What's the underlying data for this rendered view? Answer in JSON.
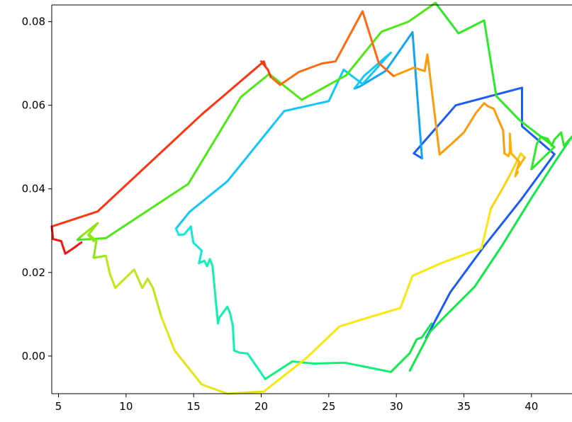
{
  "chart_data": {
    "type": "line",
    "title": "",
    "xlabel": "",
    "ylabel": "",
    "xlim": [
      4.5,
      43
    ],
    "ylim": [
      -0.009,
      0.084
    ],
    "grid": false,
    "legend": "none",
    "x_ticks": [
      5,
      10,
      15,
      20,
      25,
      30,
      35,
      40
    ],
    "x_tick_labels": [
      "5",
      "10",
      "15",
      "20",
      "25",
      "30",
      "35",
      "40"
    ],
    "y_ticks": [
      0.0,
      0.02,
      0.04,
      0.06,
      0.08
    ],
    "y_tick_labels": [
      "0.00",
      "0.02",
      "0.04",
      "0.06",
      "0.08"
    ],
    "color_scale": "jet (trajectory progresses from blue to red)",
    "series": [
      {
        "color": "#1a5cf5",
        "x": [
          32.2,
          34.0,
          36.5,
          39.2,
          41.7
        ],
        "y": [
          0.0043,
          0.0153,
          0.0263,
          0.0373,
          0.0483
        ]
      },
      {
        "color": "#1a5cf5",
        "x": [
          41.7,
          39.3,
          39.3,
          34.4,
          31.3,
          31.9
        ],
        "y": [
          0.0483,
          0.055,
          0.0642,
          0.06,
          0.0485,
          0.0473
        ]
      },
      {
        "color": "#11a6f5",
        "x": [
          31.9,
          31.2,
          29.2,
          27.3,
          26.9
        ],
        "y": [
          0.0473,
          0.0775,
          0.0682,
          0.0645,
          0.064
        ]
      },
      {
        "color": "#14c8f5",
        "x": [
          26.9,
          27.6,
          29.6,
          27.5,
          26.1,
          25.0,
          21.7,
          17.5,
          14.7,
          13.7
        ],
        "y": [
          0.064,
          0.067,
          0.0726,
          0.0651,
          0.0685,
          0.061,
          0.0586,
          0.0418,
          0.0345,
          0.0305
        ]
      },
      {
        "color": "#12e8da",
        "x": [
          13.7,
          13.9,
          14.3,
          14.8,
          14.9,
          15.0,
          15.2,
          15.6,
          15.4
        ],
        "y": [
          0.0305,
          0.029,
          0.0291,
          0.031,
          0.0285,
          0.027,
          0.0265,
          0.0252,
          0.0222
        ]
      },
      {
        "color": "#10f0b0",
        "x": [
          15.4,
          15.8,
          16.0,
          16.2,
          16.4,
          16.8,
          16.9,
          17.5,
          17.7,
          17.9,
          18.0,
          18.4,
          19.0,
          20.3
        ],
        "y": [
          0.0222,
          0.0228,
          0.0215,
          0.0232,
          0.0215,
          0.0078,
          0.0092,
          0.0118,
          0.0102,
          0.0072,
          0.0013,
          0.0008,
          0.0006,
          -0.0055
        ]
      },
      {
        "color": "#10f07a",
        "x": [
          20.3,
          22.3,
          23.9,
          26.2,
          29.6
        ],
        "y": [
          -0.0055,
          -0.0013,
          -0.0018,
          -0.0016,
          -0.0038
        ]
      },
      {
        "color": "#12e84a",
        "x": [
          29.6,
          31.0,
          31.5,
          31.9,
          32.6
        ],
        "y": [
          -0.0038,
          0.0007,
          0.004,
          0.0045,
          0.0078
        ]
      },
      {
        "color": "#12e84a",
        "x": [
          31.0,
          32.5,
          33.6,
          35.8,
          37.8,
          40.0,
          41.7,
          43.0
        ],
        "y": [
          -0.0035,
          0.0058,
          0.0095,
          0.0166,
          0.0263,
          0.0378,
          0.0463,
          0.0525
        ]
      },
      {
        "color": "#2ee82a",
        "x": [
          43.0,
          42.4,
          42.2,
          41.7,
          41.5,
          41.2,
          40.7,
          40.4,
          40.0,
          41.7,
          39.1,
          37.4,
          36.5,
          34.6,
          32.9
        ],
        "y": [
          0.0525,
          0.0503,
          0.0535,
          0.0518,
          0.0503,
          0.052,
          0.0525,
          0.0508,
          0.0447,
          0.05,
          0.0565,
          0.0622,
          0.0803,
          0.0772,
          0.0845
        ]
      },
      {
        "color": "#4ee815",
        "x": [
          32.9,
          30.9,
          28.9,
          26.3,
          23.0,
          20.6,
          18.5,
          14.6,
          8.5,
          6.4,
          6.7
        ],
        "y": [
          0.0845,
          0.08,
          0.0776,
          0.0672,
          0.0613,
          0.0675,
          0.062,
          0.0412,
          0.0282,
          0.0278,
          0.0287
        ]
      },
      {
        "color": "#8ee810",
        "x": [
          6.7,
          7.9,
          7.2,
          7.6,
          7.3,
          7.8,
          7.6,
          8.5
        ],
        "y": [
          0.0287,
          0.0318,
          0.029,
          0.0275,
          0.029,
          0.0275,
          0.0235,
          0.024
        ]
      },
      {
        "color": "#bce815",
        "x": [
          8.5,
          8.8,
          9.2,
          10.6,
          11.2,
          11.6,
          12.0,
          12.6
        ],
        "y": [
          0.024,
          0.0197,
          0.0163,
          0.0207,
          0.0163,
          0.0185,
          0.0162,
          0.0095
        ]
      },
      {
        "color": "#e2e612",
        "x": [
          12.6,
          13.6,
          15.6,
          17.5,
          20.2
        ],
        "y": [
          0.0095,
          0.0013,
          -0.0068,
          -0.009,
          -0.0085
        ]
      },
      {
        "color": "#f8e80c",
        "x": [
          20.2,
          23.3,
          25.8,
          28.1,
          30.3,
          31.2,
          33.3,
          36.3,
          37.0
        ],
        "y": [
          -0.0085,
          -0.0006,
          0.0071,
          0.0094,
          0.0115,
          0.0192,
          0.0222,
          0.0258,
          0.0353
        ]
      },
      {
        "color": "#ffd20e",
        "x": [
          37.0,
          37.9,
          38.6,
          39.2,
          39.5
        ],
        "y": [
          0.0353,
          0.0403,
          0.0445,
          0.0485,
          0.0475
        ]
      },
      {
        "color": "#ffb005",
        "x": [
          39.5,
          38.9,
          39.0,
          38.8,
          39.1,
          38.5,
          38.4,
          38.4,
          38.3,
          38.0
        ],
        "y": [
          0.0475,
          0.0445,
          0.044,
          0.043,
          0.0465,
          0.0485,
          0.0532,
          0.049,
          0.0478,
          0.0485
        ]
      },
      {
        "color": "#ff9a0a",
        "x": [
          38.0,
          37.9,
          37.2,
          36.8,
          36.5,
          35.9,
          35.0,
          34.1,
          33.2,
          32.3,
          32.1,
          31.3,
          29.8
        ],
        "y": [
          0.0485,
          0.054,
          0.0592,
          0.0597,
          0.0605,
          0.0582,
          0.0535,
          0.0508,
          0.0482,
          0.0722,
          0.0682,
          0.069,
          0.067
        ]
      },
      {
        "color": "#ff6a10",
        "x": [
          29.8,
          28.7,
          27.5,
          25.5,
          24.5,
          22.8,
          21.4,
          20.7
        ],
        "y": [
          0.067,
          0.0701,
          0.0825,
          0.0705,
          0.07,
          0.068,
          0.0649,
          0.0668
        ]
      },
      {
        "color": "#ff3512",
        "x": [
          20.7,
          20.5,
          20.0,
          20.3,
          20.2,
          15.6,
          7.9,
          4.5
        ],
        "y": [
          0.0668,
          0.0685,
          0.0705,
          0.0695,
          0.0705,
          0.0578,
          0.0346,
          0.031
        ]
      },
      {
        "color": "#f81410",
        "x": [
          4.5,
          4.6,
          5.2,
          5.5,
          6.1,
          6.7
        ],
        "y": [
          0.031,
          0.028,
          0.0275,
          0.0245,
          0.0258,
          0.0272
        ]
      }
    ]
  }
}
